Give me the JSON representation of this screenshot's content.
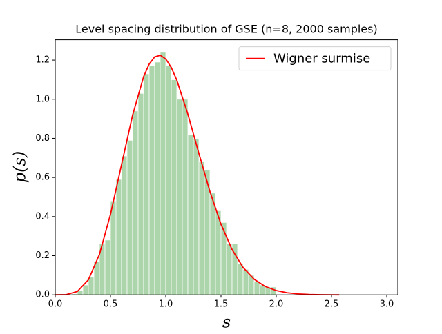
{
  "chart_data": {
    "type": "histogram",
    "title": "Level spacing distribution of GSE (n=8, 2000 samples)",
    "xlabel": "s",
    "ylabel": "p(s)",
    "bins": [
      0.15,
      0.2,
      0.25,
      0.3,
      0.35,
      0.4,
      0.45,
      0.5,
      0.55,
      0.6,
      0.65,
      0.7,
      0.75,
      0.8,
      0.85,
      0.9,
      0.95,
      1.0,
      1.05,
      1.1,
      1.15,
      1.2,
      1.25,
      1.3,
      1.35,
      1.4,
      1.45,
      1.5,
      1.55,
      1.6,
      1.65,
      1.7,
      1.75,
      1.8,
      1.85,
      1.9,
      1.95,
      2.0
    ],
    "values": [
      0.005,
      0.02,
      0.05,
      0.09,
      0.17,
      0.26,
      0.28,
      0.48,
      0.59,
      0.71,
      0.79,
      0.94,
      1.03,
      1.13,
      1.17,
      1.19,
      1.24,
      1.17,
      1.1,
      1.0,
      1.0,
      0.82,
      0.8,
      0.68,
      0.64,
      0.52,
      0.43,
      0.37,
      0.26,
      0.26,
      0.16,
      0.13,
      0.1,
      0.07,
      0.05,
      0.04,
      0.04
    ],
    "color": "#acd5ab",
    "overlay": {
      "type": "line",
      "name": "Wigner surmise",
      "color": "#ff0000",
      "x": [
        0,
        0.1,
        0.2,
        0.3,
        0.4,
        0.5,
        0.6,
        0.7,
        0.8,
        0.85,
        0.9,
        0.95,
        1.0,
        1.05,
        1.1,
        1.2,
        1.3,
        1.4,
        1.5,
        1.6,
        1.7,
        1.8,
        1.9,
        2.0,
        2.1,
        2.2,
        2.3,
        2.4,
        2.5,
        2.57
      ],
      "y": [
        0,
        0.0011,
        0.017,
        0.0766,
        0.2067,
        0.4116,
        0.6654,
        0.9184,
        1.1158,
        1.1797,
        1.2163,
        1.2248,
        1.206,
        1.1627,
        1.0977,
        0.9239,
        0.7225,
        0.5276,
        0.3605,
        0.2313,
        0.1397,
        0.0795,
        0.0427,
        0.0217,
        0.0104,
        0.0047,
        0.002,
        0.0008,
        0.0003,
        0.0001
      ]
    },
    "xlim": [
      0,
      3.1
    ],
    "ylim": [
      0,
      1.304
    ],
    "xticks": [
      {
        "value": 0,
        "label": "0.0"
      },
      {
        "value": 0.5,
        "label": "0.5"
      },
      {
        "value": 1,
        "label": "1.0"
      },
      {
        "value": 1.5,
        "label": "1.5"
      },
      {
        "value": 2,
        "label": "2.0"
      },
      {
        "value": 2.5,
        "label": "2.5"
      },
      {
        "value": 3,
        "label": "3.0"
      }
    ],
    "yticks": [
      {
        "value": 0,
        "label": "0.0"
      },
      {
        "value": 0.2,
        "label": "0.2"
      },
      {
        "value": 0.4,
        "label": "0.4"
      },
      {
        "value": 0.6,
        "label": "0.6"
      },
      {
        "value": 0.8,
        "label": "0.8"
      },
      {
        "value": 1,
        "label": "1.0"
      },
      {
        "value": 1.2,
        "label": "1.2"
      }
    ],
    "legend": "upper right",
    "grid": false
  }
}
